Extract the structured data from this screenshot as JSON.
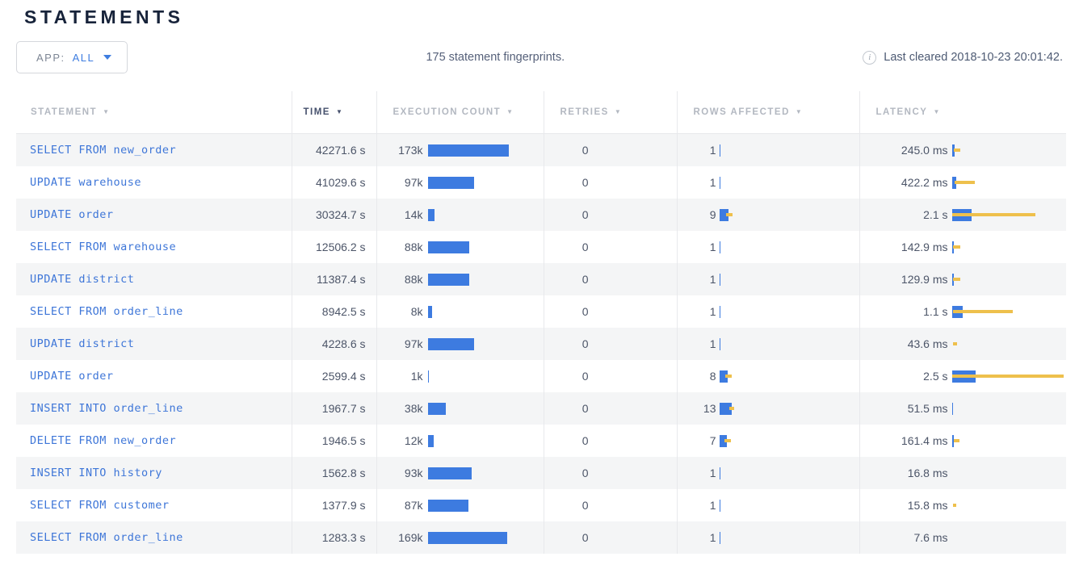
{
  "page": {
    "title": "STATEMENTS"
  },
  "toolbar": {
    "app_filter": {
      "label": "APP:",
      "value": "ALL"
    },
    "summary": "175 statement fingerprints.",
    "info_icon": "i",
    "last_cleared": "Last cleared 2018-10-23 20:01:42."
  },
  "colors": {
    "bar_blue": "#3d7be0",
    "bar_yellow": "#eec04c",
    "link_blue": "#3e76d8"
  },
  "table": {
    "sort_arrow": "▼",
    "columns": [
      {
        "key": "statement",
        "label": "STATEMENT",
        "active": false
      },
      {
        "key": "time",
        "label": "TIME",
        "active": true
      },
      {
        "key": "count",
        "label": "EXECUTION COUNT",
        "active": false
      },
      {
        "key": "retries",
        "label": "RETRIES",
        "active": false
      },
      {
        "key": "rows",
        "label": "ROWS AFFECTED",
        "active": false
      },
      {
        "key": "latency",
        "label": "LATENCY",
        "active": false
      }
    ],
    "rows": [
      {
        "statement": "SELECT FROM new_order",
        "time": "42271.6 s",
        "count": "173k",
        "count_w": 100,
        "retries": "0",
        "rows": "1",
        "rows_w": 1,
        "rows_dev": null,
        "latency": "245.0 ms",
        "lat_w": 3,
        "lat_dev": [
          2,
          10
        ]
      },
      {
        "statement": "UPDATE warehouse",
        "time": "41029.6 s",
        "count": "97k",
        "count_w": 57,
        "retries": "0",
        "rows": "1",
        "rows_w": 1,
        "rows_dev": null,
        "latency": "422.2 ms",
        "lat_w": 5,
        "lat_dev": [
          3,
          28
        ]
      },
      {
        "statement": "UPDATE order",
        "time": "30324.7 s",
        "count": "14k",
        "count_w": 8,
        "retries": "0",
        "rows": "9",
        "rows_w": 11,
        "rows_dev": [
          8,
          16
        ],
        "latency": "2.1 s",
        "lat_w": 24,
        "lat_dev": [
          0,
          103
        ]
      },
      {
        "statement": "SELECT FROM warehouse",
        "time": "12506.2 s",
        "count": "88k",
        "count_w": 51,
        "retries": "0",
        "rows": "1",
        "rows_w": 1,
        "rows_dev": null,
        "latency": "142.9 ms",
        "lat_w": 2,
        "lat_dev": [
          1,
          10
        ]
      },
      {
        "statement": "UPDATE district",
        "time": "11387.4 s",
        "count": "88k",
        "count_w": 51,
        "retries": "0",
        "rows": "1",
        "rows_w": 1,
        "rows_dev": null,
        "latency": "129.9 ms",
        "lat_w": 2,
        "lat_dev": [
          1,
          10
        ]
      },
      {
        "statement": "SELECT FROM order_line",
        "time": "8942.5 s",
        "count": "8k",
        "count_w": 5,
        "retries": "0",
        "rows": "1",
        "rows_w": 1,
        "rows_dev": null,
        "latency": "1.1 s",
        "lat_w": 13,
        "lat_dev": [
          1,
          75
        ]
      },
      {
        "statement": "UPDATE district",
        "time": "4228.6 s",
        "count": "97k",
        "count_w": 57,
        "retries": "0",
        "rows": "1",
        "rows_w": 1,
        "rows_dev": null,
        "latency": "43.6 ms",
        "lat_w": 0,
        "lat_dev": [
          1,
          6
        ]
      },
      {
        "statement": "UPDATE order",
        "time": "2599.4 s",
        "count": "1k",
        "count_w": 1,
        "retries": "0",
        "rows": "8",
        "rows_w": 10,
        "rows_dev": [
          7,
          15
        ],
        "latency": "2.5 s",
        "lat_w": 29,
        "lat_dev": [
          0,
          138
        ]
      },
      {
        "statement": "INSERT INTO order_line",
        "time": "1967.7 s",
        "count": "38k",
        "count_w": 22,
        "retries": "0",
        "rows": "13",
        "rows_w": 15,
        "rows_dev": [
          12,
          18
        ],
        "latency": "51.5 ms",
        "lat_w": 1,
        "lat_dev": null
      },
      {
        "statement": "DELETE FROM new_order",
        "time": "1946.5 s",
        "count": "12k",
        "count_w": 7,
        "retries": "0",
        "rows": "7",
        "rows_w": 9,
        "rows_dev": [
          6,
          14
        ],
        "latency": "161.4 ms",
        "lat_w": 2,
        "lat_dev": [
          2,
          9
        ]
      },
      {
        "statement": "INSERT INTO history",
        "time": "1562.8 s",
        "count": "93k",
        "count_w": 54,
        "retries": "0",
        "rows": "1",
        "rows_w": 1,
        "rows_dev": null,
        "latency": "16.8 ms",
        "lat_w": 0,
        "lat_dev": null
      },
      {
        "statement": "SELECT FROM customer",
        "time": "1377.9 s",
        "count": "87k",
        "count_w": 50,
        "retries": "0",
        "rows": "1",
        "rows_w": 1,
        "rows_dev": null,
        "latency": "15.8 ms",
        "lat_w": 0,
        "lat_dev": [
          1,
          5
        ]
      },
      {
        "statement": "SELECT FROM order_line",
        "time": "1283.3 s",
        "count": "169k",
        "count_w": 98,
        "retries": "0",
        "rows": "1",
        "rows_w": 1,
        "rows_dev": null,
        "latency": "7.6 ms",
        "lat_w": 0,
        "lat_dev": null
      }
    ]
  }
}
